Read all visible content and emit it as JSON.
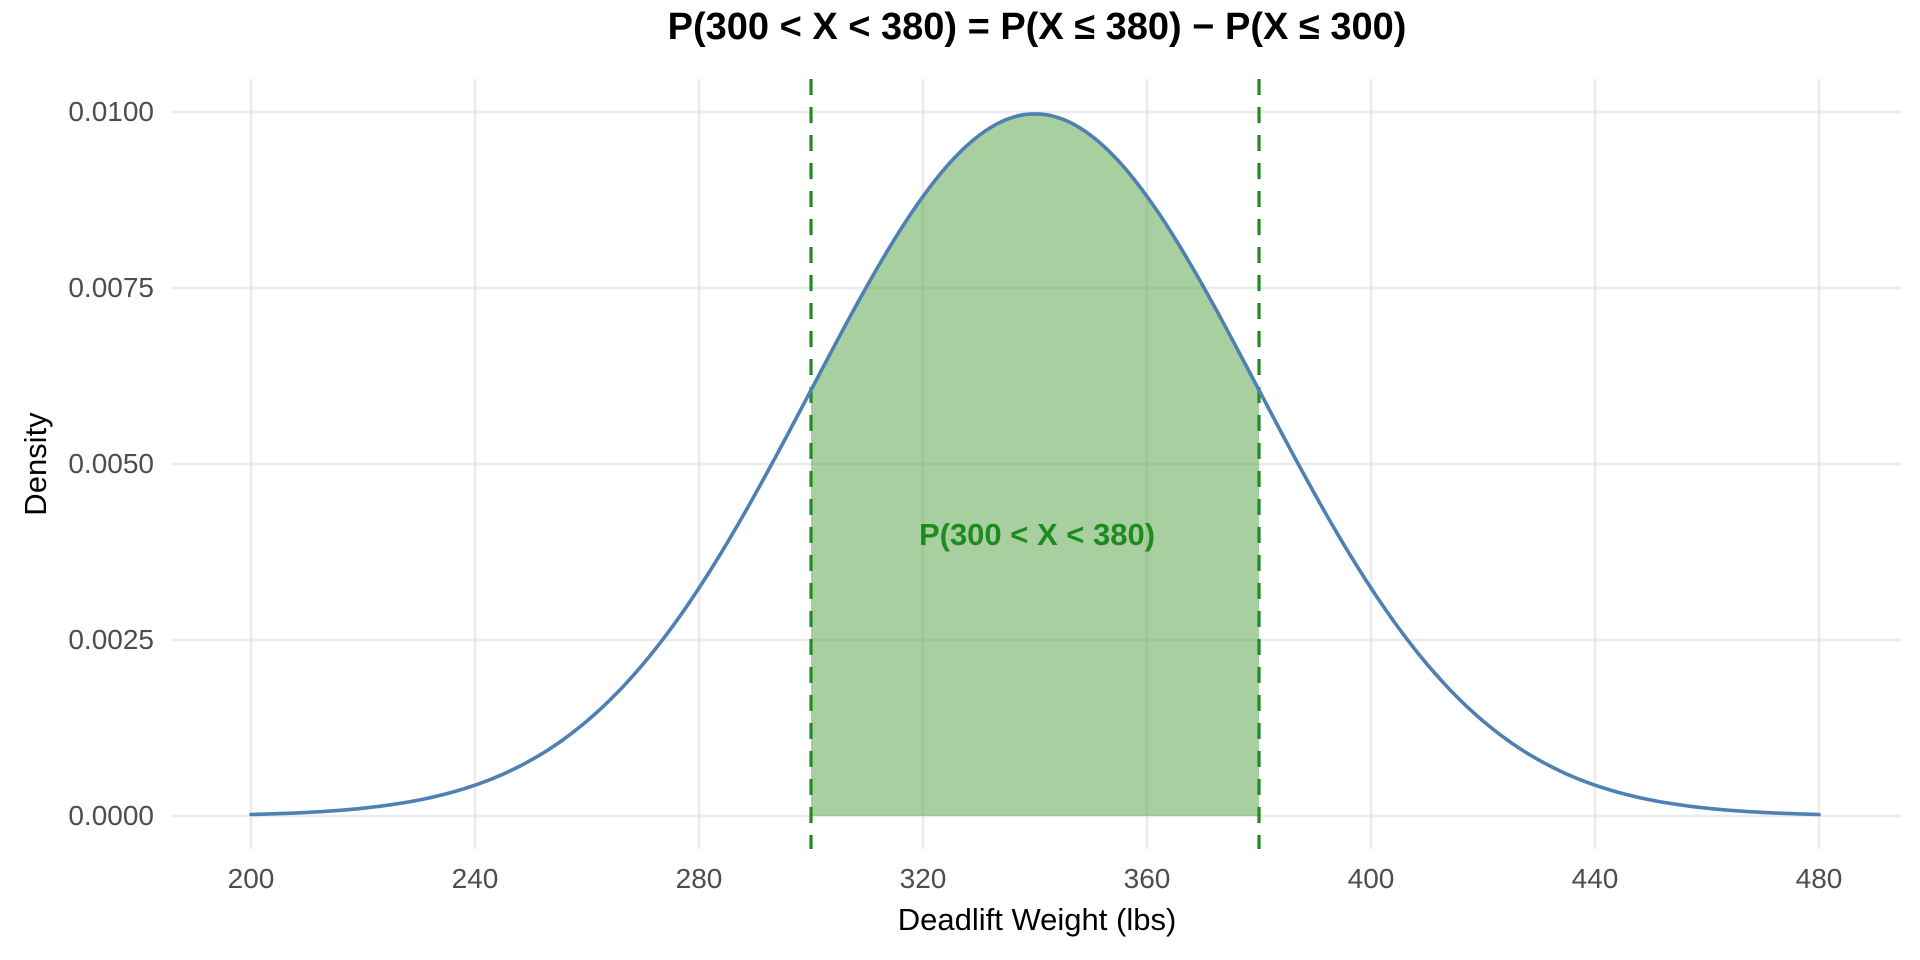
{
  "chart_data": {
    "type": "area",
    "title": "P(300 < X < 380) = P(X ≤ 380) − P(X ≤ 300)",
    "xlabel": "Deadlift Weight (lbs)",
    "ylabel": "Density",
    "distribution": {
      "name": "normal",
      "mean": 340,
      "sd": 40,
      "peak_density": 0.00997
    },
    "x_range": [
      200,
      480
    ],
    "ylim": [
      0,
      0.0105
    ],
    "x_ticks": [
      200,
      240,
      280,
      320,
      360,
      400,
      440,
      480
    ],
    "x_tick_labels": [
      "200",
      "240",
      "280",
      "320",
      "360",
      "400",
      "440",
      "480"
    ],
    "y_ticks": [
      0,
      0.0025,
      0.005,
      0.0075,
      0.01
    ],
    "y_tick_labels": [
      "0.0000",
      "0.0025",
      "0.0050",
      "0.0075",
      "0.0100"
    ],
    "grid": true,
    "legend": false,
    "shaded_region": {
      "from": 300,
      "to": 380,
      "label": "P(300 < X < 380)"
    },
    "vlines": [
      {
        "x": 300,
        "style": "dashed"
      },
      {
        "x": 380,
        "style": "dashed"
      }
    ],
    "colors": {
      "curve": "#4e80b2",
      "region_fill_base": "#519f41",
      "region_fill_opacity": 0.5,
      "vline_green": "#228b22",
      "region_label_green": "#1f8b1f",
      "gridline": "#ebebeb",
      "tick_label": "#4d4d4d",
      "title_text": "#000000",
      "background": "#ffffff"
    }
  }
}
